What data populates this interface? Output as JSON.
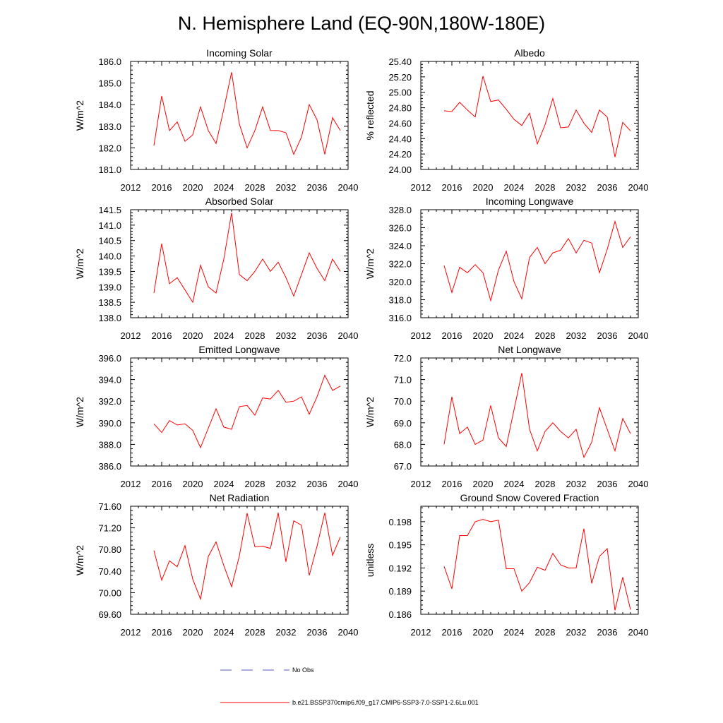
{
  "figure": {
    "title": "N. Hemisphere Land (EQ-90N,180W-180E)"
  },
  "legend": {
    "obs_label": "No Obs",
    "model_label": "b.e21.BSSP370cmip6.f09_g17.CMIP6-SSP3-7.0-SSP1-2.6Lu.001",
    "obs_color": "#5a5ad0",
    "model_color": "#ff0000"
  },
  "colors": {
    "line": "#ff0000",
    "axis": "#000000"
  },
  "chart_data": [
    {
      "type": "line",
      "title": "Incoming Solar",
      "ylabel": "W/m^2",
      "xlim": [
        2012,
        2040
      ],
      "ylim": [
        181,
        186
      ],
      "xticks": [
        2012,
        2016,
        2020,
        2024,
        2028,
        2032,
        2036,
        2040
      ],
      "yticks": [
        "181.0",
        "182.0",
        "183.0",
        "184.0",
        "185.0",
        "186.0"
      ],
      "x": [
        2015,
        2016,
        2017,
        2018,
        2019,
        2020,
        2021,
        2022,
        2023,
        2024,
        2025,
        2026,
        2027,
        2028,
        2029,
        2030,
        2031,
        2032,
        2033,
        2034,
        2035,
        2036,
        2037,
        2038,
        2039
      ],
      "values": [
        182.1,
        184.4,
        182.8,
        183.2,
        182.3,
        182.6,
        183.9,
        182.8,
        182.2,
        183.8,
        185.5,
        183.1,
        182.0,
        182.8,
        183.9,
        182.8,
        182.8,
        182.7,
        181.7,
        182.5,
        184.0,
        183.3,
        181.7,
        183.4,
        182.8
      ]
    },
    {
      "type": "line",
      "title": "Albedo",
      "ylabel": "% reflected",
      "xlim": [
        2012,
        2040
      ],
      "ylim": [
        24.0,
        25.4
      ],
      "xticks": [
        2012,
        2016,
        2020,
        2024,
        2028,
        2032,
        2036,
        2040
      ],
      "yticks": [
        "24.00",
        "24.20",
        "24.40",
        "24.60",
        "24.80",
        "25.00",
        "25.20",
        "25.40"
      ],
      "x": [
        2015,
        2016,
        2017,
        2018,
        2019,
        2020,
        2021,
        2022,
        2023,
        2024,
        2025,
        2026,
        2027,
        2028,
        2029,
        2030,
        2031,
        2032,
        2033,
        2034,
        2035,
        2036,
        2037,
        2038,
        2039
      ],
      "values": [
        24.76,
        24.75,
        24.87,
        24.77,
        24.68,
        25.21,
        24.88,
        24.9,
        24.78,
        24.65,
        24.57,
        24.73,
        24.33,
        24.58,
        24.92,
        24.54,
        24.55,
        24.77,
        24.6,
        24.48,
        24.77,
        24.68,
        24.16,
        24.61,
        24.5
      ]
    },
    {
      "type": "line",
      "title": "Absorbed Solar",
      "ylabel": "W/m^2",
      "xlim": [
        2012,
        2040
      ],
      "ylim": [
        138,
        141.5
      ],
      "xticks": [
        2012,
        2016,
        2020,
        2024,
        2028,
        2032,
        2036,
        2040
      ],
      "yticks": [
        "138.0",
        "138.5",
        "139.0",
        "139.5",
        "140.0",
        "140.5",
        "141.0",
        "141.5"
      ],
      "x": [
        2015,
        2016,
        2017,
        2018,
        2019,
        2020,
        2021,
        2022,
        2023,
        2024,
        2025,
        2026,
        2027,
        2028,
        2029,
        2030,
        2031,
        2032,
        2033,
        2034,
        2035,
        2036,
        2037,
        2038,
        2039
      ],
      "values": [
        138.8,
        140.4,
        139.1,
        139.3,
        138.9,
        138.5,
        139.7,
        139.0,
        138.8,
        139.9,
        141.4,
        139.4,
        139.2,
        139.5,
        139.9,
        139.5,
        139.8,
        139.3,
        138.7,
        139.4,
        140.1,
        139.6,
        139.2,
        139.9,
        139.5
      ]
    },
    {
      "type": "line",
      "title": "Incoming Longwave",
      "ylabel": "W/m^2",
      "xlim": [
        2012,
        2040
      ],
      "ylim": [
        316,
        328
      ],
      "xticks": [
        2012,
        2016,
        2020,
        2024,
        2028,
        2032,
        2036,
        2040
      ],
      "yticks": [
        "316.0",
        "318.0",
        "320.0",
        "322.0",
        "324.0",
        "326.0",
        "328.0"
      ],
      "x": [
        2015,
        2016,
        2017,
        2018,
        2019,
        2020,
        2021,
        2022,
        2023,
        2024,
        2025,
        2026,
        2027,
        2028,
        2029,
        2030,
        2031,
        2032,
        2033,
        2034,
        2035,
        2036,
        2037,
        2038,
        2039
      ],
      "values": [
        321.8,
        318.8,
        321.6,
        321.0,
        321.9,
        321.0,
        317.9,
        321.3,
        323.4,
        320.0,
        318.1,
        322.7,
        323.8,
        322.0,
        323.2,
        323.5,
        324.8,
        323.2,
        324.6,
        324.3,
        321.0,
        323.6,
        326.7,
        323.8,
        325.0
      ]
    },
    {
      "type": "line",
      "title": "Emitted Longwave",
      "ylabel": "W/m^2",
      "xlim": [
        2012,
        2040
      ],
      "ylim": [
        386,
        396
      ],
      "xticks": [
        2012,
        2016,
        2020,
        2024,
        2028,
        2032,
        2036,
        2040
      ],
      "yticks": [
        "386.0",
        "388.0",
        "390.0",
        "392.0",
        "394.0",
        "396.0"
      ],
      "x": [
        2015,
        2016,
        2017,
        2018,
        2019,
        2020,
        2021,
        2022,
        2023,
        2024,
        2025,
        2026,
        2027,
        2028,
        2029,
        2030,
        2031,
        2032,
        2033,
        2034,
        2035,
        2036,
        2037,
        2038,
        2039
      ],
      "values": [
        389.9,
        389.1,
        390.2,
        389.8,
        389.9,
        389.3,
        387.7,
        389.5,
        391.3,
        389.6,
        389.4,
        391.5,
        391.6,
        390.7,
        392.3,
        392.2,
        393.0,
        391.9,
        392.0,
        392.4,
        390.8,
        392.4,
        394.4,
        393.0,
        393.4
      ]
    },
    {
      "type": "line",
      "title": "Net Longwave",
      "ylabel": "W/m^2",
      "xlim": [
        2012,
        2040
      ],
      "ylim": [
        67,
        72
      ],
      "xticks": [
        2012,
        2016,
        2020,
        2024,
        2028,
        2032,
        2036,
        2040
      ],
      "yticks": [
        "67.0",
        "68.0",
        "69.0",
        "70.0",
        "71.0",
        "72.0"
      ],
      "x": [
        2015,
        2016,
        2017,
        2018,
        2019,
        2020,
        2021,
        2022,
        2023,
        2024,
        2025,
        2026,
        2027,
        2028,
        2029,
        2030,
        2031,
        2032,
        2033,
        2034,
        2035,
        2036,
        2037,
        2038,
        2039
      ],
      "values": [
        68.0,
        70.2,
        68.5,
        68.8,
        68.0,
        68.2,
        69.8,
        68.3,
        67.9,
        69.6,
        71.3,
        68.7,
        67.7,
        68.6,
        69.0,
        68.6,
        68.3,
        68.7,
        67.4,
        68.1,
        69.7,
        68.7,
        67.7,
        69.2,
        68.5
      ]
    },
    {
      "type": "line",
      "title": "Net Radiation",
      "ylabel": "W/m^2",
      "xlim": [
        2012,
        2040
      ],
      "ylim": [
        69.6,
        71.6
      ],
      "xticks": [
        2012,
        2016,
        2020,
        2024,
        2028,
        2032,
        2036,
        2040
      ],
      "yticks": [
        "69.60",
        "70.00",
        "70.40",
        "70.80",
        "71.20",
        "71.60"
      ],
      "x": [
        2015,
        2016,
        2017,
        2018,
        2019,
        2020,
        2021,
        2022,
        2023,
        2024,
        2025,
        2026,
        2027,
        2028,
        2029,
        2030,
        2031,
        2032,
        2033,
        2034,
        2035,
        2036,
        2037,
        2038,
        2039
      ],
      "values": [
        70.78,
        70.23,
        70.59,
        70.48,
        70.87,
        70.25,
        69.88,
        70.67,
        70.94,
        70.5,
        70.11,
        70.68,
        71.47,
        70.85,
        70.86,
        70.82,
        71.48,
        70.57,
        71.33,
        71.25,
        70.32,
        70.86,
        71.48,
        70.69,
        71.03
      ]
    },
    {
      "type": "line",
      "title": "Ground Snow Covered Fraction",
      "ylabel": "unitless",
      "xlim": [
        2012,
        2040
      ],
      "ylim": [
        0.186,
        0.2
      ],
      "xticks": [
        2012,
        2016,
        2020,
        2024,
        2028,
        2032,
        2036,
        2040
      ],
      "yticks": [
        "0.186",
        "0.189",
        "0.192",
        "0.195",
        "0.198"
      ],
      "ytick_values": [
        0.186,
        0.189,
        0.192,
        0.195,
        0.198
      ],
      "x": [
        2015,
        2016,
        2017,
        2018,
        2019,
        2020,
        2021,
        2022,
        2023,
        2024,
        2025,
        2026,
        2027,
        2028,
        2029,
        2030,
        2031,
        2032,
        2033,
        2034,
        2035,
        2036,
        2037,
        2038,
        2039
      ],
      "values": [
        0.1922,
        0.1893,
        0.1962,
        0.1962,
        0.198,
        0.1983,
        0.198,
        0.1982,
        0.1919,
        0.1919,
        0.189,
        0.1901,
        0.1921,
        0.1917,
        0.1939,
        0.1924,
        0.192,
        0.192,
        0.1971,
        0.19,
        0.1935,
        0.1945,
        0.1865,
        0.1908,
        0.1866
      ]
    }
  ]
}
